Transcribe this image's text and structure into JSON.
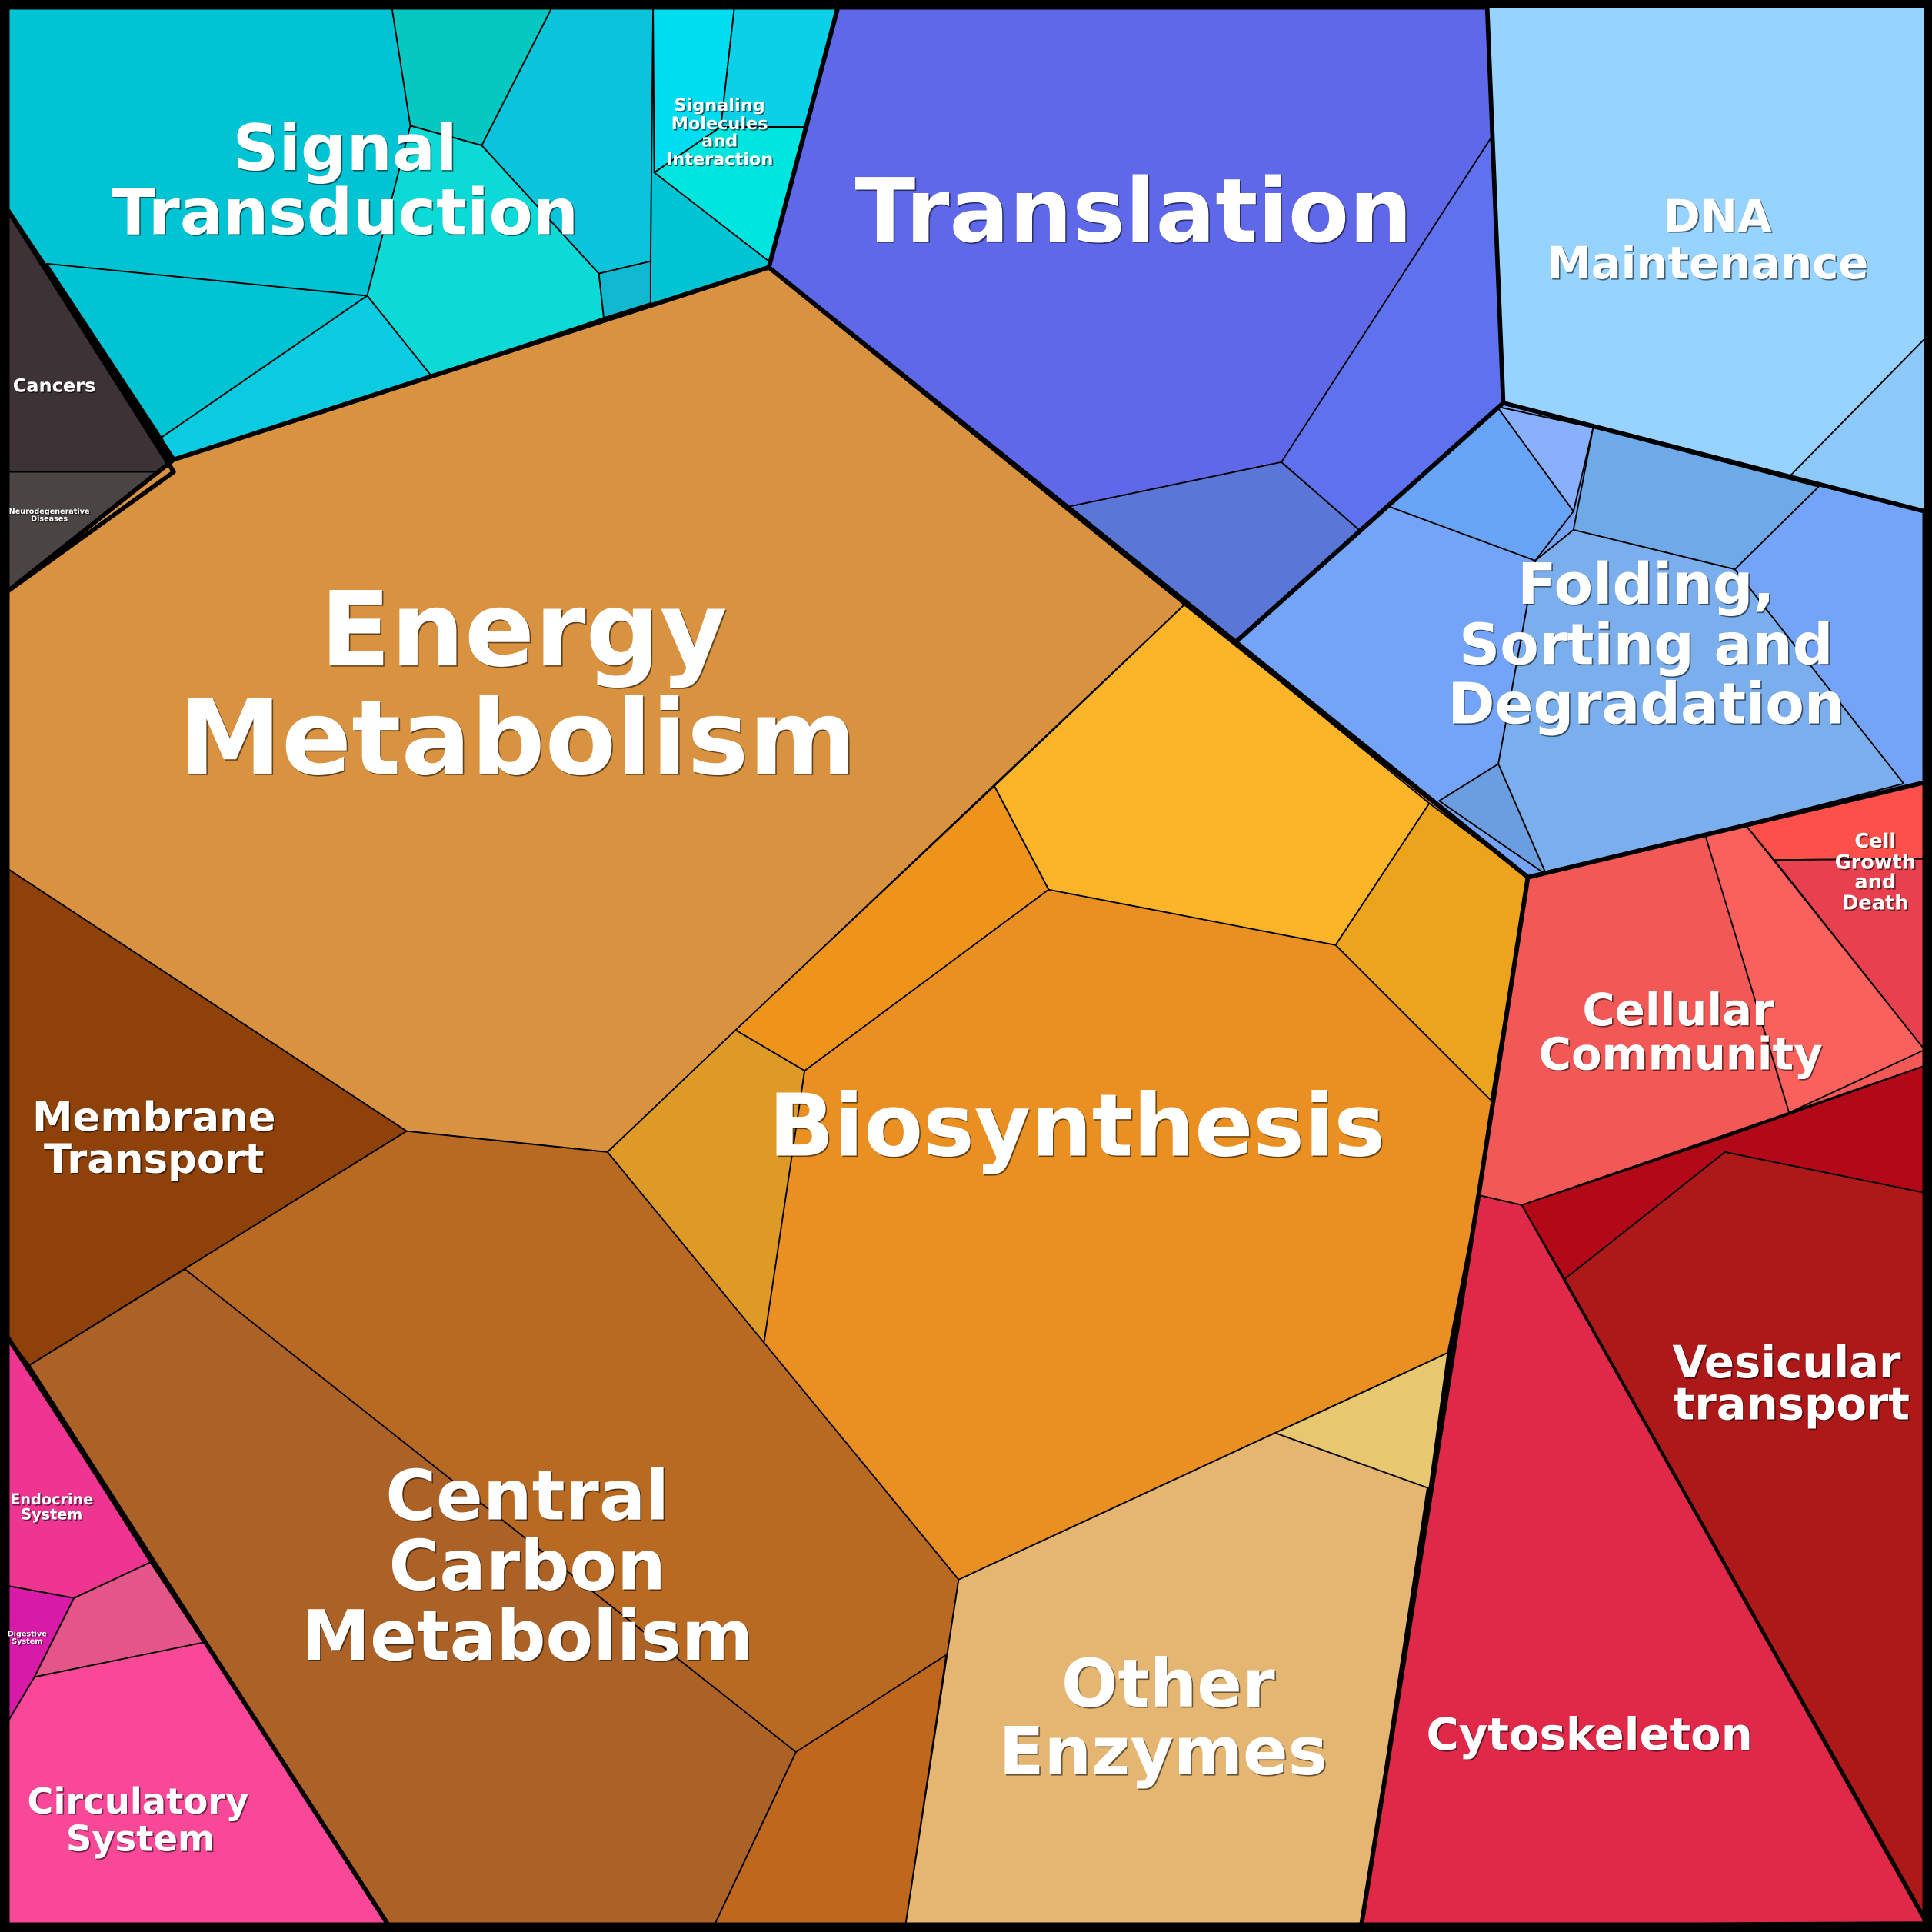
{
  "labels": {
    "signal_transduction": [
      "Signal",
      "Transduction"
    ],
    "signaling_molecules": [
      "Signaling",
      "Molecules",
      "and",
      "Interaction"
    ],
    "translation": [
      "Translation"
    ],
    "dna_maintenance": [
      "DNA",
      "Maintenance"
    ],
    "cancers": [
      "Cancers"
    ],
    "neurodegenerative": [
      "Neurodegenerative",
      "Diseases"
    ],
    "energy_metabolism": [
      "Energy",
      "Metabolism"
    ],
    "folding": [
      "Folding,",
      "Sorting and",
      "Degradation"
    ],
    "cell_growth": [
      "Cell",
      "Growth",
      "and",
      "Death"
    ],
    "cellular_community": [
      "Cellular",
      "Community"
    ],
    "membrane_transport": [
      "Membrane",
      "Transport"
    ],
    "biosynthesis": [
      "Biosynthesis"
    ],
    "vesicular_transport": [
      "Vesicular",
      "transport"
    ],
    "endocrine": [
      "Endocrine",
      "System"
    ],
    "digestive": [
      "Digestive",
      "System"
    ],
    "central_carbon": [
      "Central",
      "Carbon",
      "Metabolism"
    ],
    "other_enzymes": [
      "Other",
      "Enzymes"
    ],
    "cytoskeleton": [
      "Cytoskeleton"
    ],
    "circulatory": [
      "Circulatory",
      "System"
    ]
  }
}
